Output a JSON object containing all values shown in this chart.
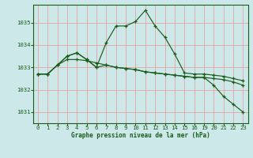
{
  "bg_color": "#cce8e8",
  "grid_color": "#e8a0a0",
  "line_color": "#1a5c1a",
  "xlabel": "Graphe pression niveau de la mer (hPa)",
  "xlabel_color": "#1a5c1a",
  "ytick_labels": [
    "1031",
    "1032",
    "1033",
    "1034",
    "1035"
  ],
  "ytick_vals": [
    1031,
    1032,
    1033,
    1034,
    1035
  ],
  "xtick_labels": [
    "0",
    "1",
    "2",
    "3",
    "4",
    "5",
    "6",
    "7",
    "8",
    "9",
    "10",
    "11",
    "12",
    "13",
    "14",
    "15",
    "16",
    "19",
    "20",
    "21",
    "22",
    "23"
  ],
  "xtick_positions": [
    0,
    1,
    2,
    3,
    4,
    5,
    6,
    7,
    8,
    9,
    10,
    11,
    12,
    13,
    14,
    15,
    16,
    17,
    18,
    19,
    20,
    21
  ],
  "ylim": [
    1030.5,
    1035.8
  ],
  "xlim": [
    -0.5,
    21.5
  ],
  "line1_x": [
    0,
    1,
    2,
    3,
    4,
    5,
    6,
    7,
    8,
    9,
    10,
    11,
    12,
    13,
    14,
    15,
    16,
    17,
    18,
    19,
    20,
    21
  ],
  "line1_y": [
    1032.7,
    1032.7,
    1033.1,
    1033.5,
    1033.65,
    1033.35,
    1033.0,
    1034.1,
    1034.85,
    1034.85,
    1035.05,
    1035.55,
    1034.85,
    1034.35,
    1033.6,
    1032.75,
    1032.7,
    1032.7,
    1032.65,
    1032.6,
    1032.5,
    1032.4
  ],
  "line2_x": [
    0,
    1,
    2,
    3,
    4,
    5,
    6,
    7,
    8,
    9,
    10,
    11,
    12,
    13,
    14,
    15,
    16,
    17,
    18,
    19,
    20,
    21
  ],
  "line2_y": [
    1032.7,
    1032.7,
    1033.1,
    1033.35,
    1033.35,
    1033.3,
    1033.2,
    1033.1,
    1033.0,
    1032.95,
    1032.9,
    1032.8,
    1032.75,
    1032.7,
    1032.65,
    1032.6,
    1032.55,
    1032.55,
    1032.5,
    1032.45,
    1032.35,
    1032.2
  ],
  "line3_x": [
    0,
    1,
    2,
    3,
    4,
    5,
    6,
    7,
    8,
    9,
    10,
    11,
    12,
    13,
    14,
    15,
    16,
    17,
    18,
    19,
    20,
    21
  ],
  "line3_y": [
    1032.7,
    1032.7,
    1033.1,
    1033.5,
    1033.65,
    1033.35,
    1033.0,
    1033.1,
    1033.0,
    1032.95,
    1032.9,
    1032.8,
    1032.75,
    1032.7,
    1032.65,
    1032.6,
    1032.55,
    1032.55,
    1032.2,
    1031.7,
    1031.35,
    1031.0
  ]
}
